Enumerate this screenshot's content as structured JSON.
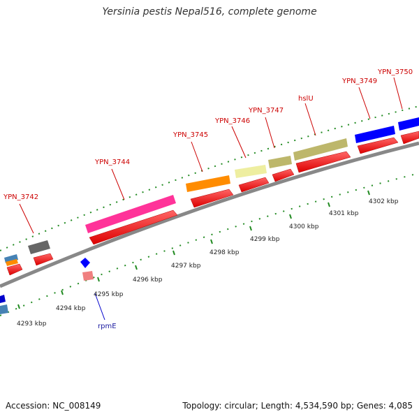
{
  "title": "Yersinia pestis Nepal516, complete genome",
  "footer": {
    "accession": "Accession: NC_008149",
    "summary": "Topology: circular; Length: 4,534,590 bp; Genes: 4,085"
  },
  "map": {
    "gene_labels": [
      {
        "id": "YPN_3742",
        "text": "YPN_3742"
      },
      {
        "id": "YPN_3744",
        "text": "YPN_3744"
      },
      {
        "id": "YPN_3745",
        "text": "YPN_3745"
      },
      {
        "id": "YPN_3746",
        "text": "YPN_3746"
      },
      {
        "id": "YPN_3747",
        "text": "YPN_3747"
      },
      {
        "id": "hslU",
        "text": "hslU"
      },
      {
        "id": "YPN_3749",
        "text": "YPN_3749"
      },
      {
        "id": "YPN_3750",
        "text": "YPN_3750"
      },
      {
        "id": "rpmE",
        "text": "rpmE"
      }
    ],
    "scale_labels": [
      "4293 kbp",
      "4294 kbp",
      "4295 kbp",
      "4296 kbp",
      "4297 kbp",
      "4298 kbp",
      "4299 kbp",
      "4300 kbp",
      "4301 kbp",
      "4302 kbp"
    ],
    "colors": {
      "cds": "#ff0000",
      "backbone": "#999999",
      "ticks": "#228b22",
      "label_text": "#cc0000",
      "label_line": "#cc0000",
      "rpmE_line": "#0000cc",
      "pink": "#ff3399",
      "orange": "#ff8c00",
      "pale_yellow": "#eeeea0",
      "khaki": "#bdb76b",
      "blue": "#0000ff",
      "grey": "#666666",
      "steel_blue": "#4682b4",
      "light_red": "#f08080"
    }
  }
}
